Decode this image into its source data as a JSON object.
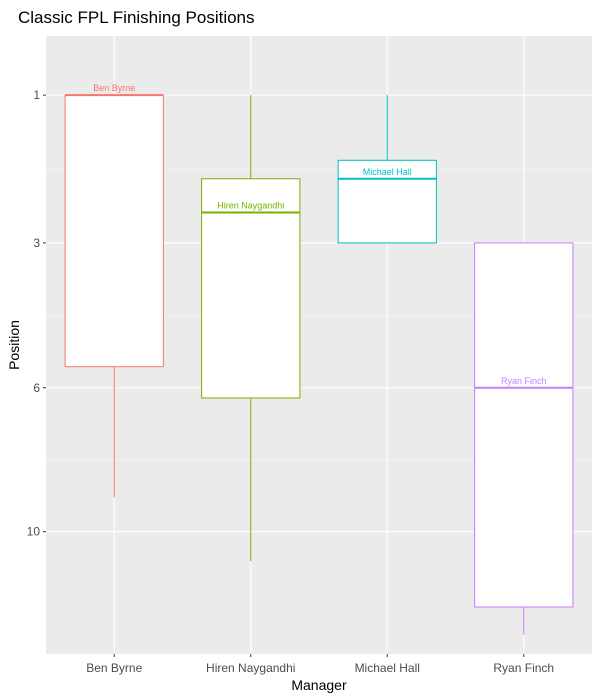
{
  "chart_data": {
    "type": "boxplot",
    "title": "Classic FPL Finishing Positions",
    "xlabel": "Manager",
    "ylabel": "Position",
    "y_scale": "reversed",
    "ylim": [
      0.5,
      14.2
    ],
    "y_ticks": [
      1,
      3,
      6,
      10
    ],
    "y_tick_labels": [
      "1",
      "3",
      "6",
      "10"
    ],
    "grid": true,
    "legend": "none",
    "categories": [
      "Ben Byrne",
      "Hiren Naygandhi",
      "Michael Hall",
      "Ryan Finch"
    ],
    "series": [
      {
        "name": "Ben Byrne",
        "color": "#F8766D",
        "min": 1,
        "q1": 1,
        "median": 1,
        "q3": 5.5,
        "max": 8.95
      },
      {
        "name": "Hiren Naygandhi",
        "color": "#7CAE00",
        "min": 1,
        "q1": 2,
        "median": 2.5,
        "q3": 6.25,
        "max": 10.95
      },
      {
        "name": "Michael Hall",
        "color": "#00BFC4",
        "min": 1,
        "q1": 1.75,
        "median": 2,
        "q3": 3,
        "max": 3
      },
      {
        "name": "Ryan Finch",
        "color": "#C77CFF",
        "min": 3,
        "q1": 3,
        "median": 6,
        "q3": 12.5,
        "max": 13.5
      }
    ]
  }
}
